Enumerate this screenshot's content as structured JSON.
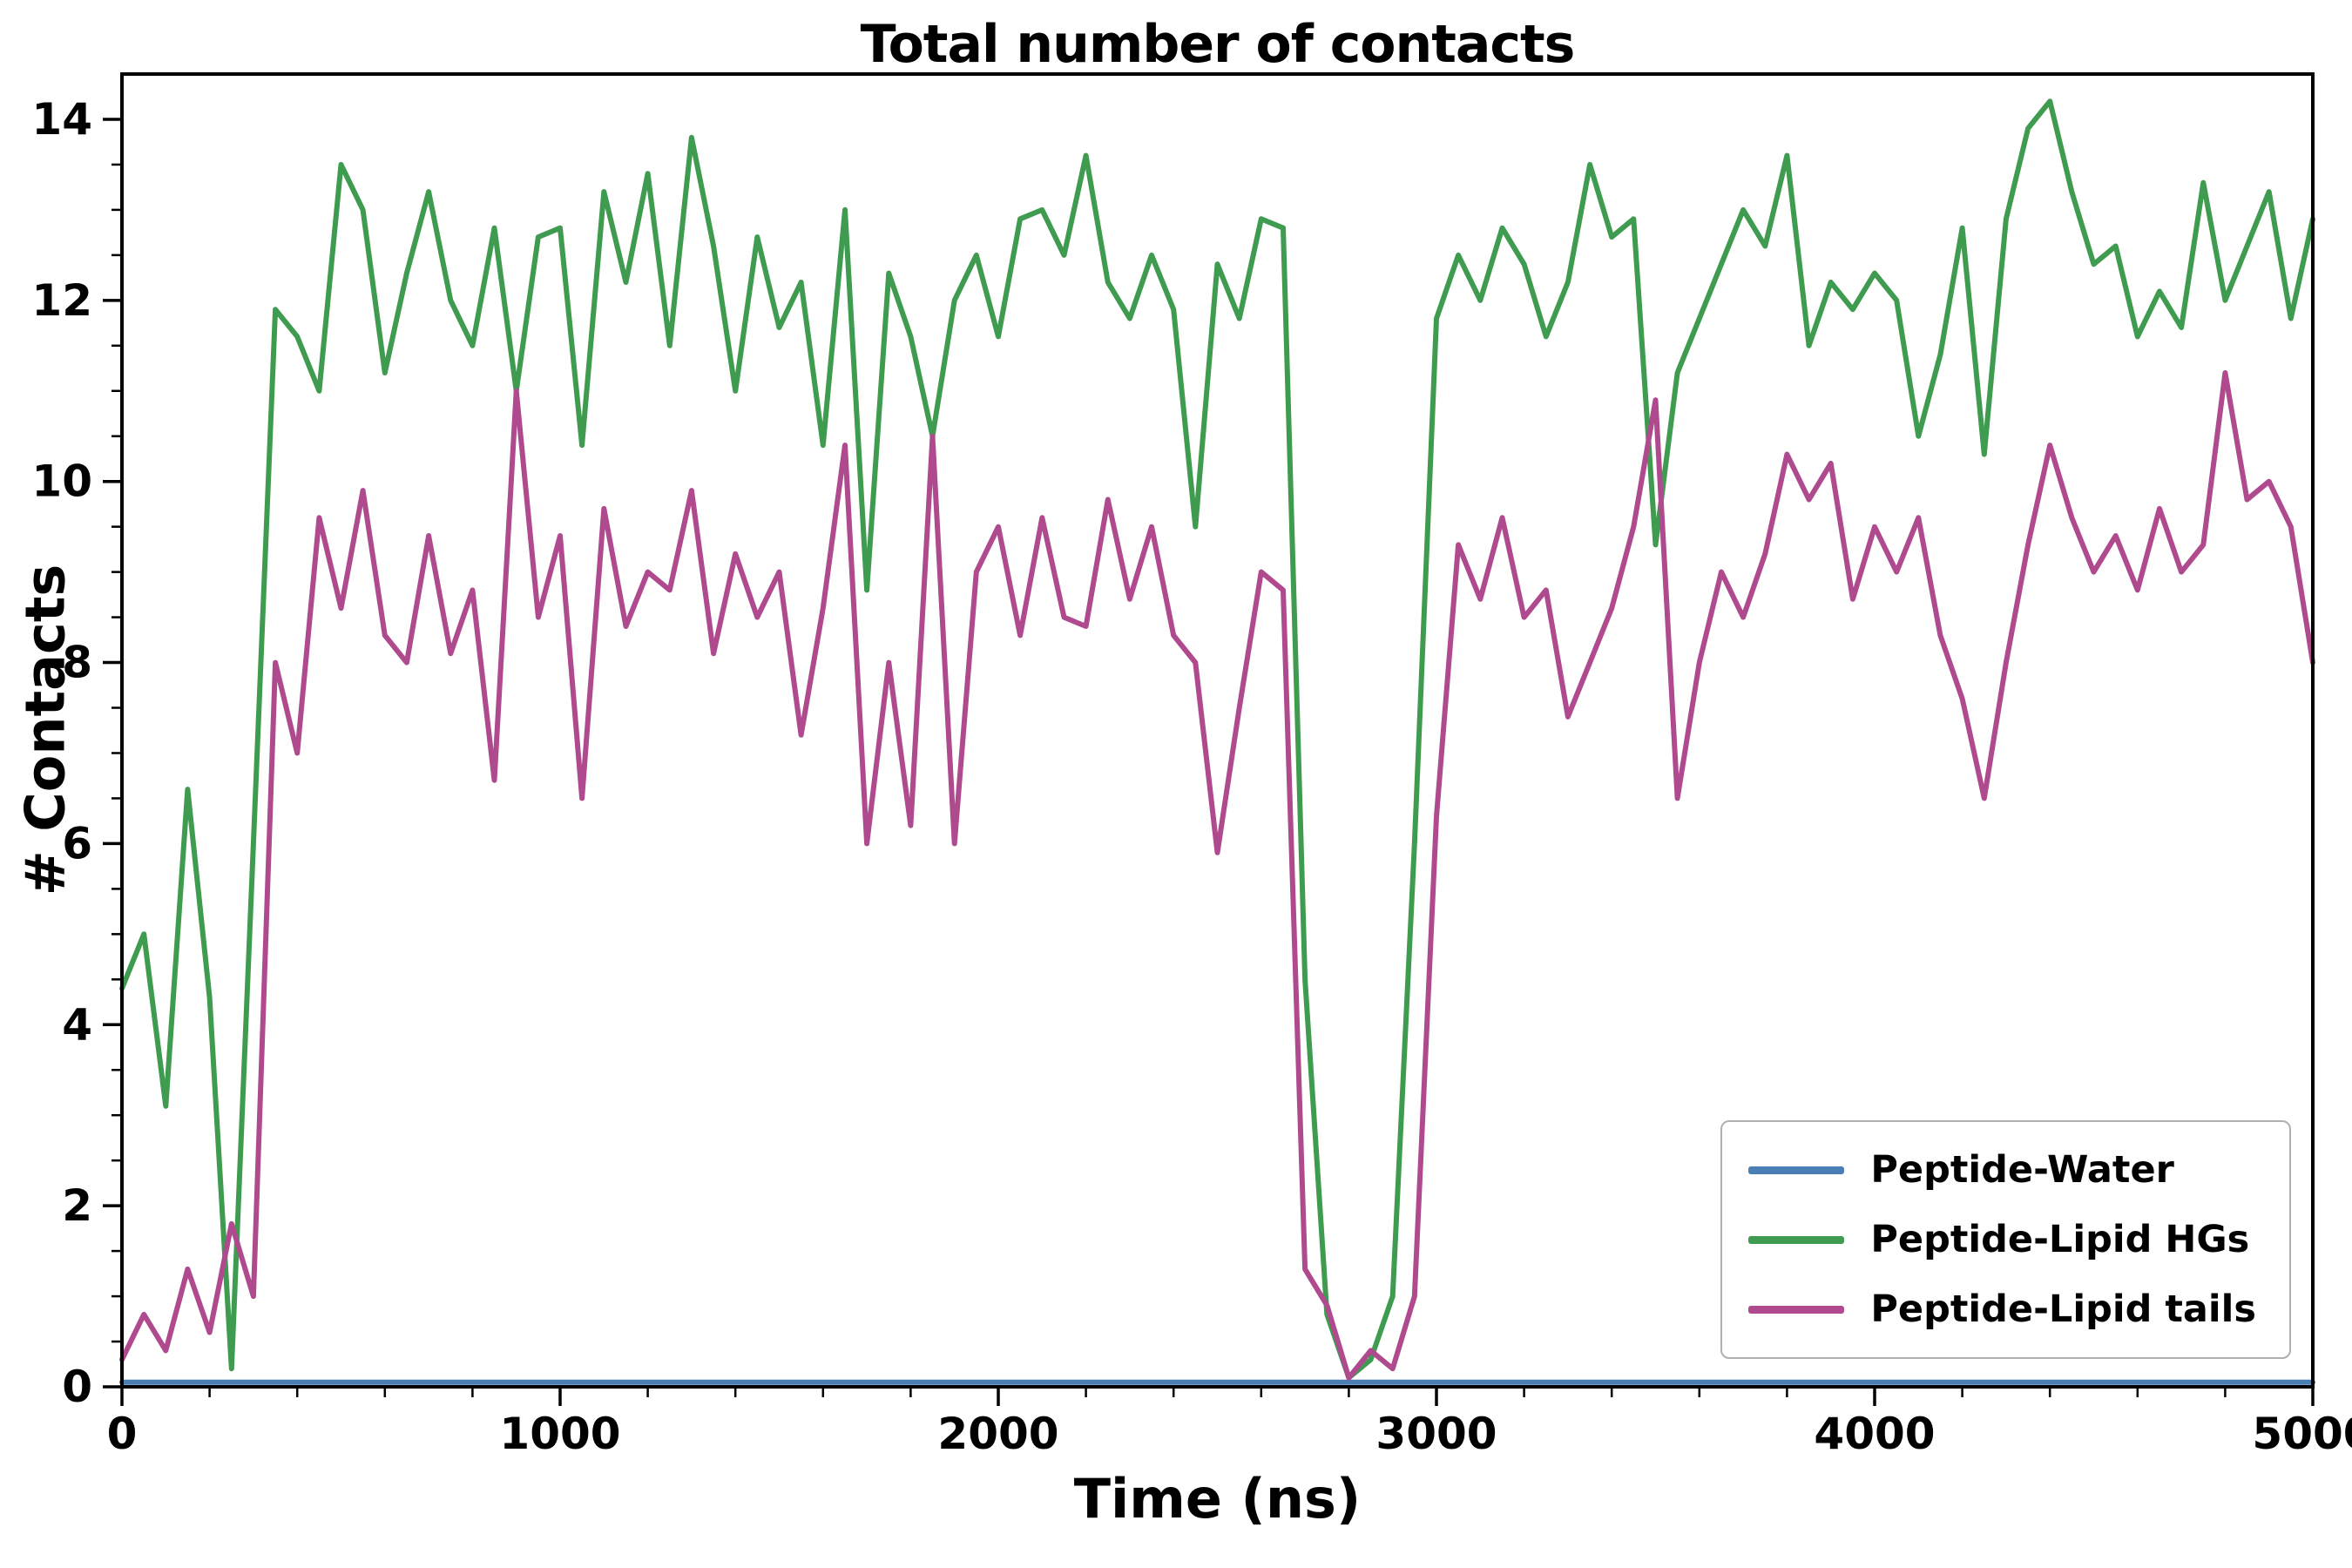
{
  "chart_data": {
    "type": "line",
    "title": "Total number of contacts",
    "xlabel": "Time (ns)",
    "ylabel": "# Contacts",
    "xlim": [
      0,
      5000
    ],
    "ylim": [
      0,
      14.5
    ],
    "xticks": [
      0,
      1000,
      2000,
      3000,
      4000,
      5000
    ],
    "yticks": [
      0,
      2,
      4,
      6,
      8,
      10,
      12,
      14
    ],
    "x_minor_step": 200,
    "y_minor_step": 0.5,
    "grid": false,
    "legend_position": "lower right",
    "axis_color": "#000000",
    "x": [
      0,
      50,
      100,
      150,
      200,
      250,
      300,
      350,
      400,
      450,
      500,
      550,
      600,
      650,
      700,
      750,
      800,
      850,
      900,
      950,
      1000,
      1050,
      1100,
      1150,
      1200,
      1250,
      1300,
      1350,
      1400,
      1450,
      1500,
      1550,
      1600,
      1650,
      1700,
      1750,
      1800,
      1850,
      1900,
      1950,
      2000,
      2050,
      2100,
      2150,
      2200,
      2250,
      2300,
      2350,
      2400,
      2450,
      2500,
      2550,
      2600,
      2650,
      2700,
      2750,
      2800,
      2850,
      2900,
      2950,
      3000,
      3050,
      3100,
      3150,
      3200,
      3250,
      3300,
      3350,
      3400,
      3450,
      3500,
      3550,
      3600,
      3650,
      3700,
      3750,
      3800,
      3850,
      3900,
      3950,
      4000,
      4050,
      4100,
      4150,
      4200,
      4250,
      4300,
      4350,
      4400,
      4450,
      4500,
      4550,
      4600,
      4650,
      4700,
      4750,
      4800,
      4850,
      4900,
      4950,
      5000
    ],
    "series": [
      {
        "name": "Peptide-Water",
        "color": "#4a7fb5",
        "values": 0.05
      },
      {
        "name": "Peptide-Lipid HGs",
        "color": "#3f9b4f",
        "values": [
          4.4,
          5.0,
          3.1,
          6.6,
          4.3,
          0.2,
          6.0,
          11.9,
          11.6,
          11.0,
          13.5,
          13.0,
          11.2,
          12.3,
          13.2,
          12.0,
          11.5,
          12.8,
          11.0,
          12.7,
          12.8,
          10.4,
          13.2,
          12.2,
          13.4,
          11.5,
          13.8,
          12.6,
          11.0,
          12.7,
          11.7,
          12.2,
          10.4,
          13.0,
          8.8,
          12.3,
          11.6,
          10.5,
          12.0,
          12.5,
          11.6,
          12.9,
          13.0,
          12.5,
          13.6,
          12.2,
          11.8,
          12.5,
          11.9,
          9.5,
          12.4,
          11.8,
          12.9,
          12.8,
          4.5,
          0.8,
          0.1,
          0.3,
          1.0,
          6.0,
          11.8,
          12.5,
          12.0,
          12.8,
          12.4,
          11.6,
          12.2,
          13.5,
          12.7,
          12.9,
          9.3,
          11.2,
          11.8,
          12.4,
          13.0,
          12.6,
          13.6,
          11.5,
          12.2,
          11.9,
          12.3,
          12.0,
          10.5,
          11.4,
          12.8,
          10.3,
          12.9,
          13.9,
          14.2,
          13.2,
          12.4,
          12.6,
          11.6,
          12.1,
          11.7,
          13.3,
          12.0,
          12.6,
          13.2,
          11.8,
          12.9
        ]
      },
      {
        "name": "Peptide-Lipid tails",
        "color": "#b04a8e",
        "values": [
          0.3,
          0.8,
          0.4,
          1.3,
          0.6,
          1.8,
          1.0,
          8.0,
          7.0,
          9.6,
          8.6,
          9.9,
          8.3,
          8.0,
          9.4,
          8.1,
          8.8,
          6.7,
          11.0,
          8.5,
          9.4,
          6.5,
          9.7,
          8.4,
          9.0,
          8.8,
          9.9,
          8.1,
          9.2,
          8.5,
          9.0,
          7.2,
          8.6,
          10.4,
          6.0,
          8.0,
          6.2,
          10.5,
          6.0,
          9.0,
          9.5,
          8.3,
          9.6,
          8.5,
          8.4,
          9.8,
          8.7,
          9.5,
          8.3,
          8.0,
          5.9,
          7.5,
          9.0,
          8.8,
          1.3,
          0.9,
          0.1,
          0.4,
          0.2,
          1.0,
          6.3,
          9.3,
          8.7,
          9.6,
          8.5,
          8.8,
          7.4,
          8.0,
          8.6,
          9.5,
          10.9,
          6.5,
          8.0,
          9.0,
          8.5,
          9.2,
          10.3,
          9.8,
          10.2,
          8.7,
          9.5,
          9.0,
          9.6,
          8.3,
          7.6,
          6.5,
          8.0,
          9.3,
          10.4,
          9.6,
          9.0,
          9.4,
          8.8,
          9.7,
          9.0,
          9.3,
          11.2,
          9.8,
          10.0,
          9.5,
          8.0
        ]
      }
    ]
  }
}
